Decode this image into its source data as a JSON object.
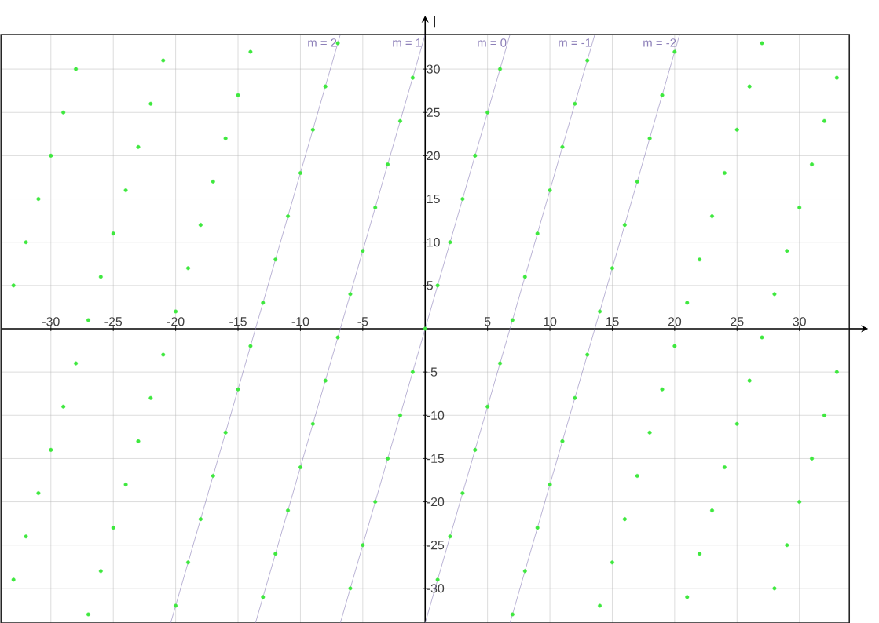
{
  "chart_data": {
    "type": "scatter",
    "ylabel": "l",
    "grid": true,
    "xlim": [
      -34,
      34
    ],
    "ylim": [
      -34,
      34
    ],
    "xticks": [
      -30,
      -25,
      -20,
      -15,
      -10,
      -5,
      5,
      10,
      15,
      20,
      25,
      30
    ],
    "yticks": [
      -30,
      -25,
      -20,
      -15,
      -10,
      -5,
      5,
      10,
      15,
      20,
      25,
      30
    ],
    "series": [
      {
        "marker": "circle",
        "color": "#3ee83e",
        "x": [
          -33,
          -33,
          -32,
          -32,
          -31,
          -31,
          -30,
          -30,
          -29,
          -29,
          -28,
          -28,
          -27,
          -27,
          -26,
          -26,
          -25,
          -25,
          -24,
          -24,
          -23,
          -23,
          -22,
          -22,
          -21,
          -21,
          -20,
          -20,
          -19,
          -19,
          -18,
          -18,
          -17,
          -17,
          -16,
          -16,
          -15,
          -15,
          -14,
          -14,
          -13,
          -13,
          -12,
          -12,
          -11,
          -11,
          -10,
          -10,
          -9,
          -9,
          -8,
          -8,
          -7,
          -7,
          -6,
          -6,
          -5,
          -5,
          -4,
          -4,
          -3,
          -3,
          -2,
          -2,
          -1,
          -1,
          0,
          1,
          1,
          2,
          2,
          3,
          3,
          4,
          4,
          5,
          5,
          6,
          6,
          7,
          7,
          8,
          8,
          9,
          9,
          10,
          10,
          11,
          11,
          12,
          12,
          13,
          13,
          14,
          14,
          15,
          15,
          16,
          16,
          17,
          17,
          18,
          18,
          19,
          19,
          20,
          20,
          21,
          21,
          22,
          22,
          23,
          23,
          24,
          24,
          25,
          25,
          26,
          26,
          27,
          27,
          28,
          28,
          29,
          29,
          30,
          30,
          31,
          31,
          32,
          32,
          33,
          33
        ],
        "values": [
          5,
          -29,
          10,
          -24,
          15,
          -19,
          20,
          -14,
          25,
          -9,
          30,
          -4,
          1,
          -33,
          6,
          -28,
          11,
          -23,
          16,
          -18,
          21,
          -13,
          26,
          -8,
          31,
          -3,
          2,
          -32,
          7,
          -27,
          12,
          -22,
          17,
          -17,
          22,
          -12,
          27,
          -7,
          32,
          -2,
          3,
          -31,
          8,
          -26,
          13,
          -21,
          18,
          -16,
          23,
          -11,
          28,
          -6,
          33,
          -1,
          4,
          -30,
          9,
          -25,
          14,
          -20,
          19,
          -15,
          24,
          -10,
          29,
          -5,
          0,
          5,
          -29,
          10,
          -24,
          15,
          -19,
          20,
          -14,
          25,
          -9,
          30,
          -4,
          1,
          -33,
          6,
          -28,
          11,
          -23,
          16,
          -18,
          21,
          -13,
          26,
          -8,
          31,
          -3,
          2,
          -32,
          7,
          -27,
          12,
          -22,
          17,
          -17,
          22,
          -12,
          27,
          -7,
          32,
          -2,
          3,
          -31,
          8,
          -26,
          13,
          -21,
          18,
          -16,
          23,
          -11,
          28,
          -6,
          33,
          -1,
          4,
          -30,
          9,
          -25,
          14,
          -20,
          19,
          -15,
          24,
          -10,
          29,
          -5
        ]
      },
      {
        "type": "line",
        "name": "m = 2",
        "marker": "none",
        "color": "#8c7fb8",
        "x": [
          -20.4,
          -6.8
        ],
        "values": [
          -34,
          34
        ]
      },
      {
        "type": "line",
        "name": "m = 1",
        "marker": "none",
        "color": "#8c7fb8",
        "x": [
          -13.6,
          0
        ],
        "values": [
          -34,
          34
        ]
      },
      {
        "type": "line",
        "name": "m = 0",
        "marker": "none",
        "color": "#8c7fb8",
        "x": [
          -6.8,
          6.8
        ],
        "values": [
          -34,
          34
        ]
      },
      {
        "type": "line",
        "name": "m = -1",
        "marker": "none",
        "color": "#8c7fb8",
        "x": [
          0,
          13.6
        ],
        "values": [
          -34,
          34
        ]
      },
      {
        "type": "line",
        "name": "m = -2",
        "marker": "none",
        "color": "#8c7fb8",
        "x": [
          6.8,
          20.4
        ],
        "values": [
          -34,
          34
        ]
      }
    ]
  }
}
